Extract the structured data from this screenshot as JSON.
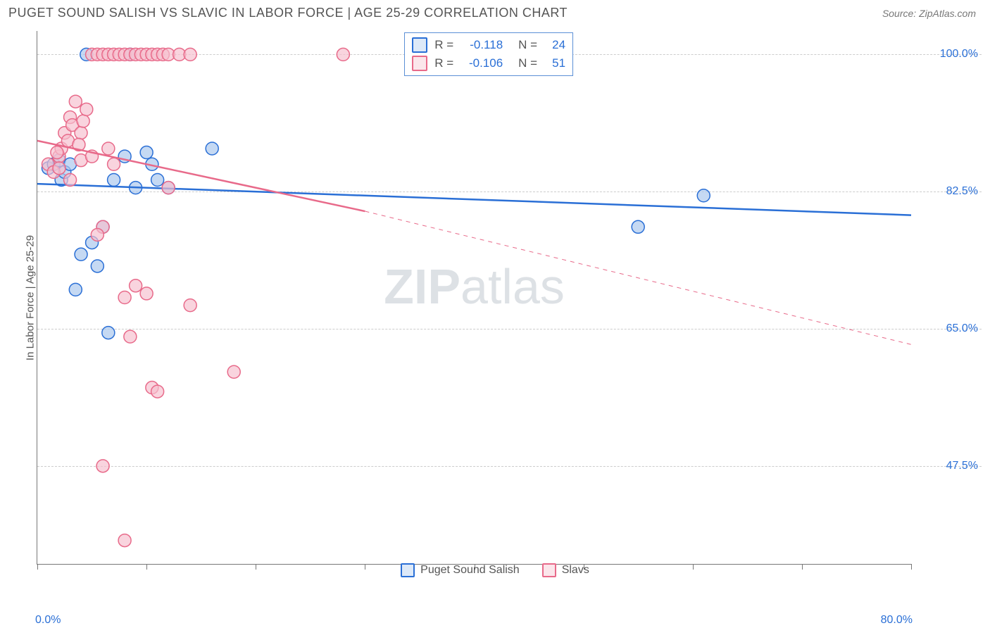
{
  "title": "PUGET SOUND SALISH VS SLAVIC IN LABOR FORCE | AGE 25-29 CORRELATION CHART",
  "source": "Source: ZipAtlas.com",
  "ylabel": "In Labor Force | Age 25-29",
  "watermark": {
    "part1": "ZIP",
    "part2": "atlas"
  },
  "chart": {
    "type": "scatter",
    "xlim": [
      0,
      80
    ],
    "ylim": [
      35,
      103
    ],
    "xticks_pct": [
      0,
      12.5,
      25,
      37.5,
      50,
      62.5,
      75,
      87.5,
      100
    ],
    "ygrid": [
      47.5,
      65.0,
      82.5,
      100.0
    ],
    "ytick_labels": [
      "47.5%",
      "65.0%",
      "82.5%",
      "100.0%"
    ],
    "x_start_label": "0.0%",
    "x_end_label": "80.0%",
    "background_color": "#ffffff",
    "grid_color": "#cccccc",
    "axis_color": "#777777",
    "tick_label_color": "#2a6fd6",
    "point_radius": 9,
    "point_stroke_width": 1.5,
    "point_fill_opacity": 0.28,
    "line_width": 2.5,
    "series": [
      {
        "name": "Puget Sound Salish",
        "color_stroke": "#2a6fd6",
        "color_fill": "#a9c7ee",
        "R": "-0.118",
        "N": "24",
        "line": {
          "x1": 0,
          "y1": 83.5,
          "x2": 80,
          "y2": 79.5,
          "dashed": false
        },
        "points": [
          [
            1.0,
            85.5
          ],
          [
            1.5,
            86.0
          ],
          [
            2.0,
            86.5
          ],
          [
            2.2,
            84.0
          ],
          [
            2.5,
            85.0
          ],
          [
            3.0,
            86.0
          ],
          [
            3.5,
            70.0
          ],
          [
            4.0,
            74.5
          ],
          [
            5.0,
            76.0
          ],
          [
            5.5,
            73.0
          ],
          [
            6.0,
            78.0
          ],
          [
            6.5,
            64.5
          ],
          [
            7.0,
            84.0
          ],
          [
            8.0,
            87.0
          ],
          [
            8.5,
            100.0
          ],
          [
            9.0,
            83.0
          ],
          [
            10.0,
            87.5
          ],
          [
            10.5,
            86.0
          ],
          [
            11.0,
            84.0
          ],
          [
            12.0,
            83.0
          ],
          [
            16.0,
            88.0
          ],
          [
            55.0,
            78.0
          ],
          [
            61.0,
            82.0
          ],
          [
            4.5,
            100.0
          ]
        ]
      },
      {
        "name": "Slavs",
        "color_stroke": "#e86a8a",
        "color_fill": "#f6c0ce",
        "R": "-0.106",
        "N": "51",
        "line": {
          "x1": 0,
          "y1": 89.0,
          "x2": 30,
          "y2": 80.0,
          "dashed": false
        },
        "line_ext": {
          "x1": 30,
          "y1": 80.0,
          "x2": 80,
          "y2": 63.0,
          "dashed": true
        },
        "points": [
          [
            1.0,
            86.0
          ],
          [
            1.5,
            85.0
          ],
          [
            2.0,
            87.0
          ],
          [
            2.2,
            88.0
          ],
          [
            2.5,
            90.0
          ],
          [
            3.0,
            92.0
          ],
          [
            3.2,
            91.0
          ],
          [
            3.5,
            94.0
          ],
          [
            4.0,
            90.0
          ],
          [
            4.2,
            91.5
          ],
          [
            4.5,
            93.0
          ],
          [
            5.0,
            100.0
          ],
          [
            5.5,
            100.0
          ],
          [
            6.0,
            100.0
          ],
          [
            6.5,
            100.0
          ],
          [
            7.0,
            100.0
          ],
          [
            7.5,
            100.0
          ],
          [
            8.0,
            100.0
          ],
          [
            8.5,
            100.0
          ],
          [
            9.0,
            100.0
          ],
          [
            9.5,
            100.0
          ],
          [
            10.0,
            100.0
          ],
          [
            10.5,
            100.0
          ],
          [
            11.0,
            100.0
          ],
          [
            11.5,
            100.0
          ],
          [
            12.0,
            100.0
          ],
          [
            13.0,
            100.0
          ],
          [
            14.0,
            100.0
          ],
          [
            28.0,
            100.0
          ],
          [
            3.0,
            84.0
          ],
          [
            4.0,
            86.5
          ],
          [
            5.0,
            87.0
          ],
          [
            6.0,
            78.0
          ],
          [
            6.5,
            88.0
          ],
          [
            7.0,
            86.0
          ],
          [
            8.0,
            69.0
          ],
          [
            8.5,
            64.0
          ],
          [
            9.0,
            70.5
          ],
          [
            10.0,
            69.5
          ],
          [
            10.5,
            57.5
          ],
          [
            11.0,
            57.0
          ],
          [
            12.0,
            83.0
          ],
          [
            14.0,
            68.0
          ],
          [
            18.0,
            59.5
          ],
          [
            6.0,
            47.5
          ],
          [
            8.0,
            38.0
          ],
          [
            5.5,
            77.0
          ],
          [
            2.0,
            85.5
          ],
          [
            1.8,
            87.5
          ],
          [
            2.8,
            89.0
          ],
          [
            3.8,
            88.5
          ]
        ]
      }
    ]
  },
  "legend_inbox": {
    "rows": [
      {
        "color_stroke": "#2a6fd6",
        "color_fill": "#a9c7ee",
        "R_label": "R =",
        "R": "-0.118",
        "N_label": "N =",
        "N": "24"
      },
      {
        "color_stroke": "#e86a8a",
        "color_fill": "#f6c0ce",
        "R_label": "R =",
        "R": "-0.106",
        "N_label": "N =",
        "N": "51"
      }
    ]
  },
  "bottom_legend": [
    {
      "color_stroke": "#2a6fd6",
      "color_fill": "#a9c7ee",
      "label": "Puget Sound Salish"
    },
    {
      "color_stroke": "#e86a8a",
      "color_fill": "#f6c0ce",
      "label": "Slavs"
    }
  ]
}
